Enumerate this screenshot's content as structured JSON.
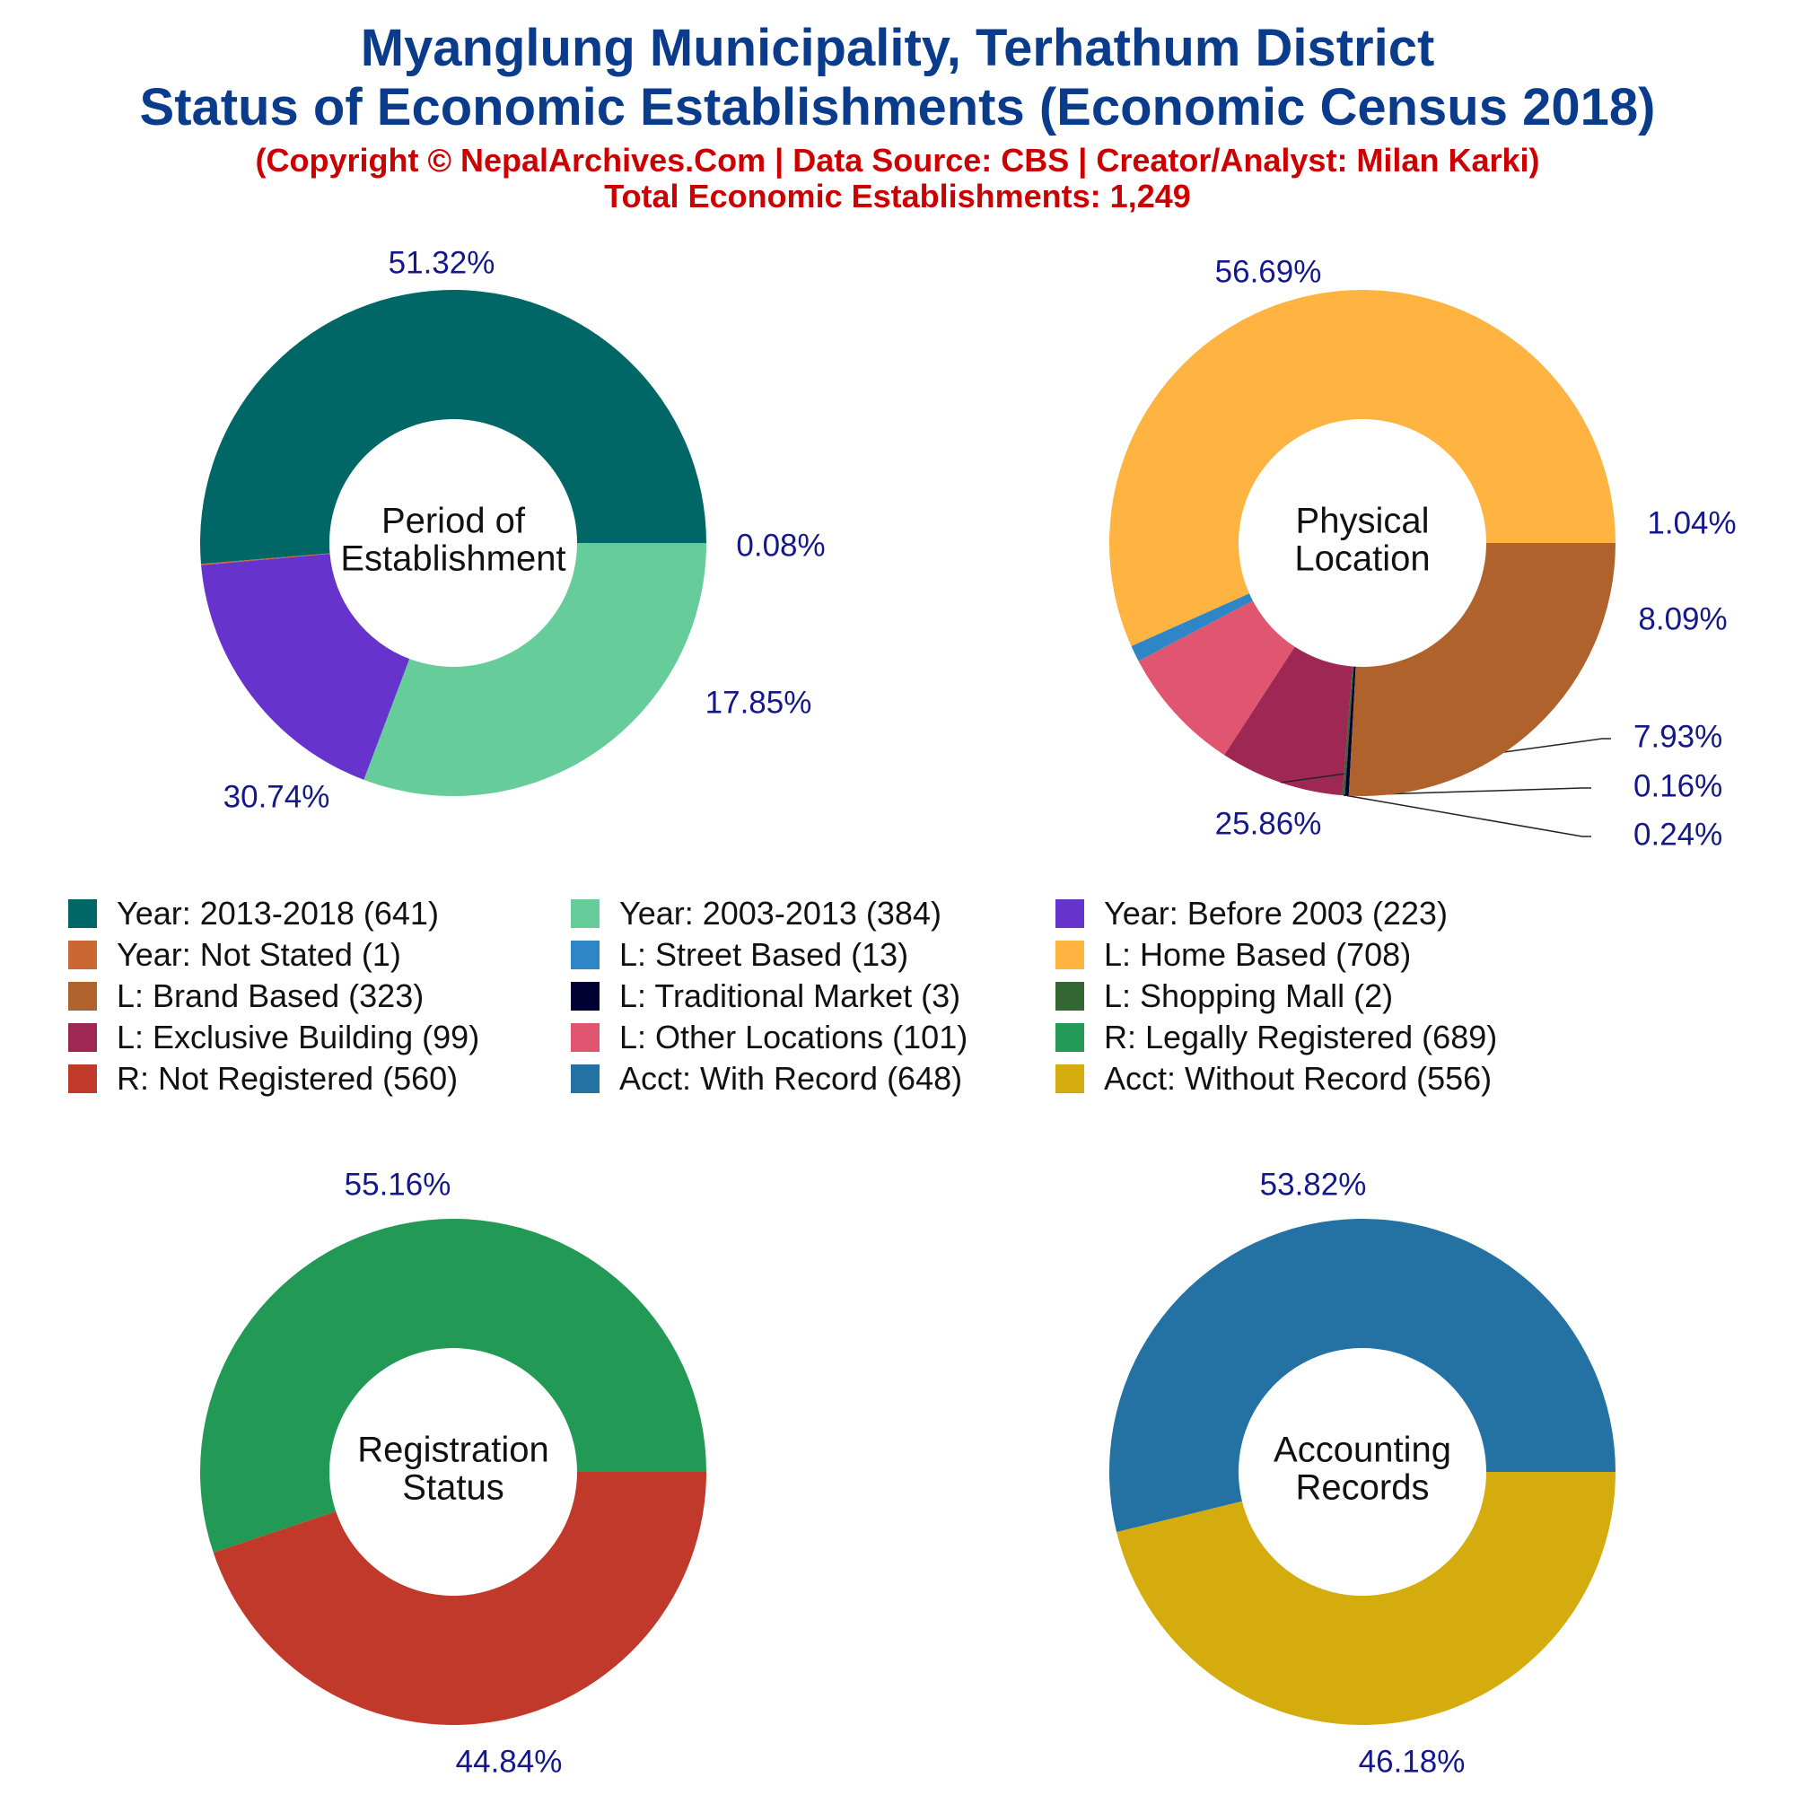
{
  "header": {
    "title_line1": "Myanglung Municipality, Terhathum District",
    "title_line2": "Status of Economic Establishments (Economic Census 2018)",
    "subtitle_line1": "(Copyright © NepalArchives.Com | Data Source: CBS | Creator/Analyst: Milan Karki)",
    "subtitle_line2": "Total Economic Establishments: 1,249"
  },
  "legend": [
    {
      "label": "Year: 2013-2018 (641)",
      "color": "#006666"
    },
    {
      "label": "Year: 2003-2013 (384)",
      "color": "#66cc99"
    },
    {
      "label": "Year: Before 2003 (223)",
      "color": "#6633cc"
    },
    {
      "label": "Year: Not Stated (1)",
      "color": "#cc6633"
    },
    {
      "label": "L: Street Based (13)",
      "color": "#2f86c6"
    },
    {
      "label": "L: Home Based (708)",
      "color": "#ffb340"
    },
    {
      "label": "L: Brand Based (323)",
      "color": "#b0622d"
    },
    {
      "label": "L: Traditional Market (3)",
      "color": "#000033"
    },
    {
      "label": "L: Shopping Mall (2)",
      "color": "#336633"
    },
    {
      "label": "L: Exclusive Building (99)",
      "color": "#9e2853"
    },
    {
      "label": "L: Other Locations (101)",
      "color": "#e05570"
    },
    {
      "label": "R: Legally Registered (689)",
      "color": "#229955"
    },
    {
      "label": "R: Not Registered (560)",
      "color": "#c0392b"
    },
    {
      "label": "Acct: With Record (648)",
      "color": "#2471a3"
    },
    {
      "label": "Acct: Without Record (556)",
      "color": "#d4ac0d"
    }
  ],
  "chart_data": [
    {
      "type": "pie",
      "title": "Period of Establishment",
      "center_lines": [
        "Period of",
        "Establishment"
      ],
      "slices": [
        {
          "name": "Year: 2013-2018",
          "value": 641,
          "label": "51.32%",
          "color": "#006666"
        },
        {
          "name": "Year: Not Stated",
          "value": 1,
          "label": "0.08%",
          "color": "#cc6633"
        },
        {
          "name": "Year: Before 2003",
          "value": 223,
          "label": "17.85%",
          "color": "#6633cc"
        },
        {
          "name": "Year: 2003-2013",
          "value": 384,
          "label": "30.74%",
          "color": "#66cc99"
        }
      ]
    },
    {
      "type": "pie",
      "title": "Physical Location",
      "center_lines": [
        "Physical",
        "Location"
      ],
      "slices": [
        {
          "name": "L: Home Based",
          "value": 708,
          "label": "56.69%",
          "color": "#ffb340"
        },
        {
          "name": "L: Street Based",
          "value": 13,
          "label": "1.04%",
          "color": "#2f86c6"
        },
        {
          "name": "L: Other Locations",
          "value": 101,
          "label": "8.09%",
          "color": "#e05570"
        },
        {
          "name": "L: Exclusive Building",
          "value": 99,
          "label": "7.93%",
          "color": "#9e2853"
        },
        {
          "name": "L: Shopping Mall",
          "value": 2,
          "label": "0.16%",
          "color": "#336633"
        },
        {
          "name": "L: Traditional Market",
          "value": 3,
          "label": "0.24%",
          "color": "#000033"
        },
        {
          "name": "L: Brand Based",
          "value": 323,
          "label": "25.86%",
          "color": "#b0622d"
        }
      ]
    },
    {
      "type": "pie",
      "title": "Registration Status",
      "center_lines": [
        "Registration",
        "Status"
      ],
      "slices": [
        {
          "name": "R: Legally Registered",
          "value": 689,
          "label": "55.16%",
          "color": "#229955"
        },
        {
          "name": "R: Not Registered",
          "value": 560,
          "label": "44.84%",
          "color": "#c0392b"
        }
      ]
    },
    {
      "type": "pie",
      "title": "Accounting Records",
      "center_lines": [
        "Accounting",
        "Records"
      ],
      "slices": [
        {
          "name": "Acct: With Record",
          "value": 648,
          "label": "53.82%",
          "color": "#2471a3"
        },
        {
          "name": "Acct: Without Record",
          "value": 556,
          "label": "46.18%",
          "color": "#d4ac0d"
        }
      ]
    }
  ]
}
